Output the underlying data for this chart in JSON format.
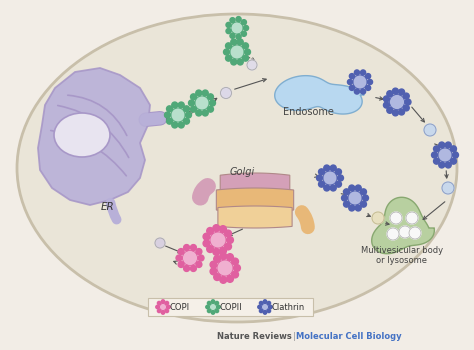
{
  "background_color": "#f2ede6",
  "cell_color": "#eae5d8",
  "cell_border_color": "#c8bfaa",
  "nature_reviews_text": "Nature Reviews",
  "journal_text": "Molecular Cell Biology",
  "nature_reviews_color": "#555555",
  "journal_color": "#4472c4",
  "er_color": "#b8b0d8",
  "er_nucleus_fill": "#e8e4f0",
  "er_nucleus_border": "#a898c8",
  "golgi_pink": "#d4a0b8",
  "golgi_orange": "#e8b878",
  "golgi_peach": "#f0d098",
  "endosome_color": "#b8d8f0",
  "endosome_border": "#80aed0",
  "lysosome_color": "#b8d0a0",
  "lysosome_border": "#88a870",
  "lysosome_inner": "#f8f8f8",
  "copi_coat": "#e060a0",
  "copi_inner": "#f0b0d0",
  "copii_coat": "#50a878",
  "copii_inner": "#b8e0cc",
  "clathrin_coat": "#5060b0",
  "clathrin_inner": "#b0b8e0",
  "arrow_color": "#555555",
  "label_er": "ER",
  "label_golgi": "Golgi",
  "label_endosome": "Endosome",
  "label_lysosome": "Multivesicular body\nor lysosome",
  "label_copi": "COPI",
  "label_copii": "COPII",
  "label_clathrin": "Clathrin",
  "legend_bg": "#f5f0e8",
  "legend_border": "#c8bfaa"
}
